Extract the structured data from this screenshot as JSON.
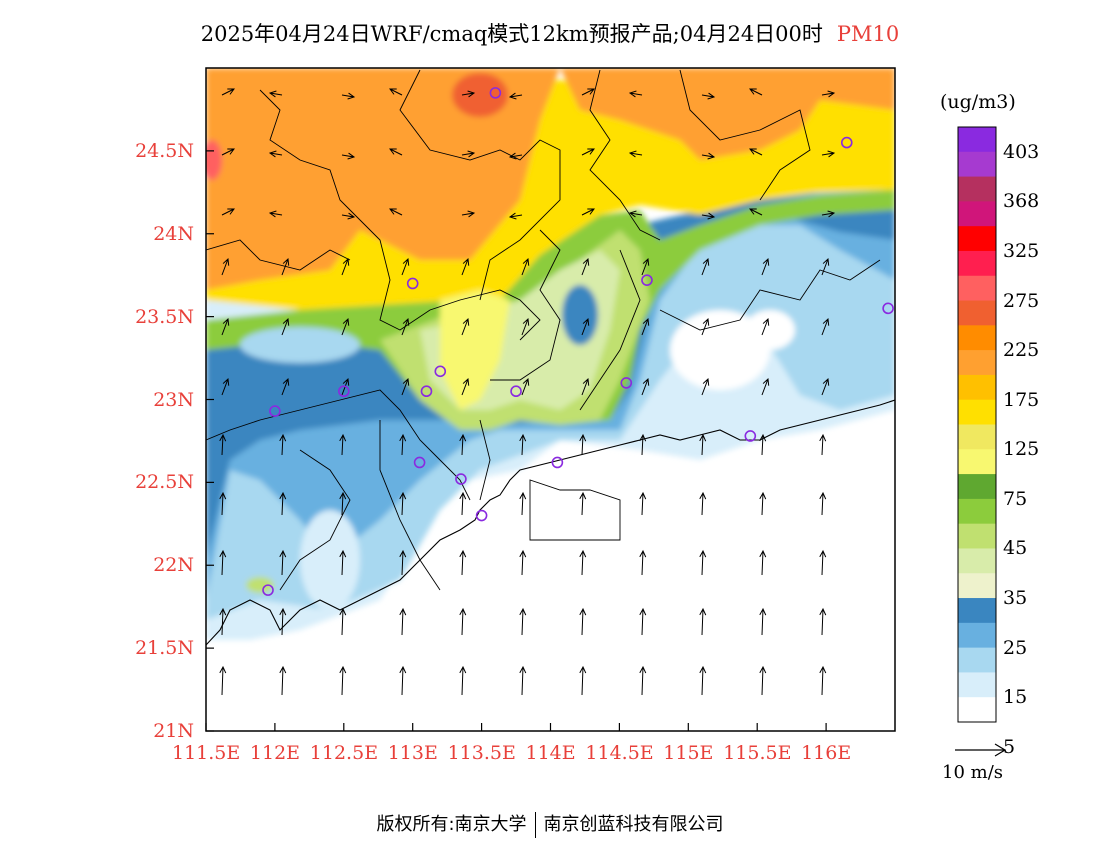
{
  "title": {
    "text": "2025年04月24日WRF/cmaq模式12km预报产品;04月24日00时",
    "variable": "PM10"
  },
  "colorbar": {
    "units": "(ug/m3)",
    "labels": [
      "403",
      "368",
      "325",
      "275",
      "225",
      "175",
      "125",
      "75",
      "45",
      "35",
      "25",
      "15",
      "5"
    ],
    "colors": [
      "#8a2ae0",
      "#a63ad0",
      "#b5305f",
      "#d0157a",
      "#ff0000",
      "#ff1f4f",
      "#ff6060",
      "#f06030",
      "#ff8c00",
      "#ffa030",
      "#ffc000",
      "#ffe000",
      "#f0e860",
      "#f8f870",
      "#5fa830",
      "#8ccc3c",
      "#c0e070",
      "#d8ecaa",
      "#eef2cc",
      "#3a86c0",
      "#68b0e0",
      "#a8d8f0",
      "#d8eefa",
      "#ffffff"
    ]
  },
  "map": {
    "lat_labels": [
      "24.5N",
      "24N",
      "23.5N",
      "23N",
      "22.5N",
      "22N",
      "21.5N",
      "21N"
    ],
    "lat_values": [
      24.5,
      24,
      23.5,
      23,
      22.5,
      22,
      21.5,
      21
    ],
    "lon_labels": [
      "111.5E",
      "112E",
      "112.5E",
      "113E",
      "113.5E",
      "114E",
      "114.5E",
      "115E",
      "115.5E",
      "116E"
    ],
    "lon_values": [
      111.5,
      112,
      112.5,
      113,
      113.5,
      114,
      114.5,
      115,
      115.5,
      116
    ],
    "extent": {
      "lon_min": 111.5,
      "lon_max": 116.5,
      "lat_min": 21.0,
      "lat_max": 25.0
    },
    "stations": [
      [
        113.6,
        24.85
      ],
      [
        116.15,
        24.55
      ],
      [
        113.0,
        23.7
      ],
      [
        114.7,
        23.72
      ],
      [
        116.45,
        23.55
      ],
      [
        113.2,
        23.17
      ],
      [
        113.1,
        23.05
      ],
      [
        112.5,
        23.05
      ],
      [
        113.75,
        23.05
      ],
      [
        114.55,
        23.1
      ],
      [
        112.0,
        22.93
      ],
      [
        115.45,
        22.78
      ],
      [
        113.05,
        22.62
      ],
      [
        114.05,
        22.62
      ],
      [
        113.35,
        22.52
      ],
      [
        113.5,
        22.3
      ],
      [
        111.95,
        21.85
      ]
    ]
  },
  "wind": {
    "scale_label": "10 m/s"
  },
  "footer": {
    "left": "版权所有:南京大学",
    "right": "南京创蓝科技有限公司"
  }
}
